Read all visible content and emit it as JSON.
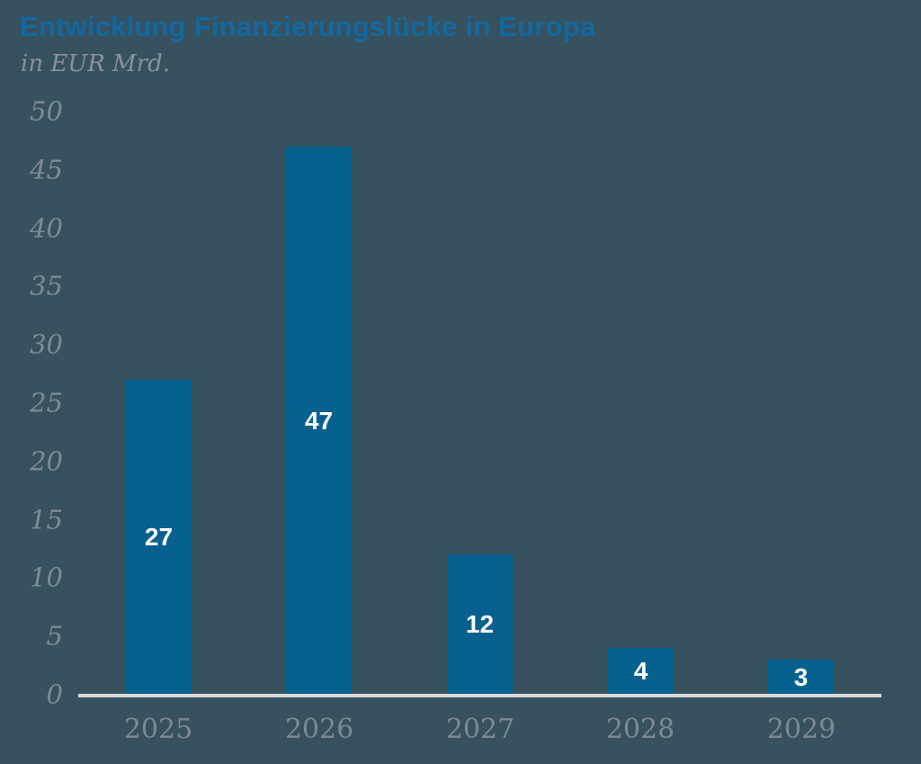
{
  "header": {
    "title": "Entwicklung Finanzierungslücke in Europa",
    "subtitle": "in EUR Mrd."
  },
  "chart_data": {
    "type": "bar",
    "title": "Entwicklung Finanzierungslücke in Europa",
    "subtitle": "in EUR Mrd.",
    "categories": [
      "2025",
      "2026",
      "2027",
      "2028",
      "2029"
    ],
    "values": [
      27,
      47,
      12,
      4,
      3
    ],
    "value_labels": [
      "27",
      "47",
      "12",
      "4",
      "3"
    ],
    "xlabel": "",
    "ylabel": "",
    "ylim": [
      0,
      50
    ],
    "ytick_step": 5,
    "yticks": [
      0,
      5,
      10,
      15,
      20,
      25,
      30,
      35,
      40,
      45,
      50
    ],
    "grid": false,
    "legend": "none"
  },
  "colors": {
    "background": "#37515f",
    "bar": "#06618f",
    "title": "#1269a1",
    "subtitle": "#8b9197",
    "axis_labels": "#7f8b94",
    "axis_line": "#d8dada",
    "value_label": "#fdfdfd"
  }
}
